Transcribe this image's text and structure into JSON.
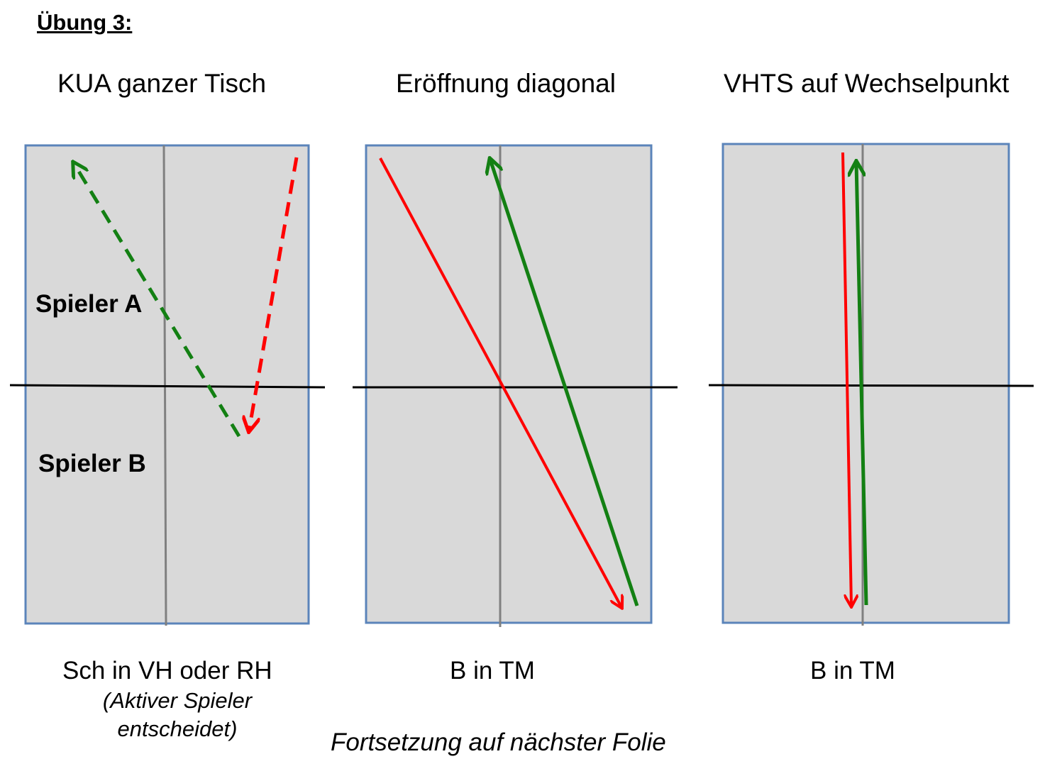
{
  "title": "Übung 3:",
  "colors": {
    "table_fill": "#d9d9d9",
    "table_border": "#5b84ba",
    "center_line": "#808080",
    "net_line": "#000000",
    "ball_red": "#ff0000",
    "ball_green": "#138013"
  },
  "exercises": [
    {
      "heading": "KUA ganzer Tisch",
      "player_a_label": "Spieler A",
      "player_b_label": "Spieler B",
      "caption": "Sch in VH oder RH",
      "caption_note": "(Aktiver Spieler entscheidet)",
      "line_style": "dashed"
    },
    {
      "heading": "Eröffnung diagonal",
      "caption": "B in TM",
      "line_style": "solid"
    },
    {
      "heading": "VHTS auf Wechselpunkt",
      "caption": "B in TM",
      "line_style": "solid"
    }
  ],
  "footer": "Fortsetzung auf nächster Folie"
}
